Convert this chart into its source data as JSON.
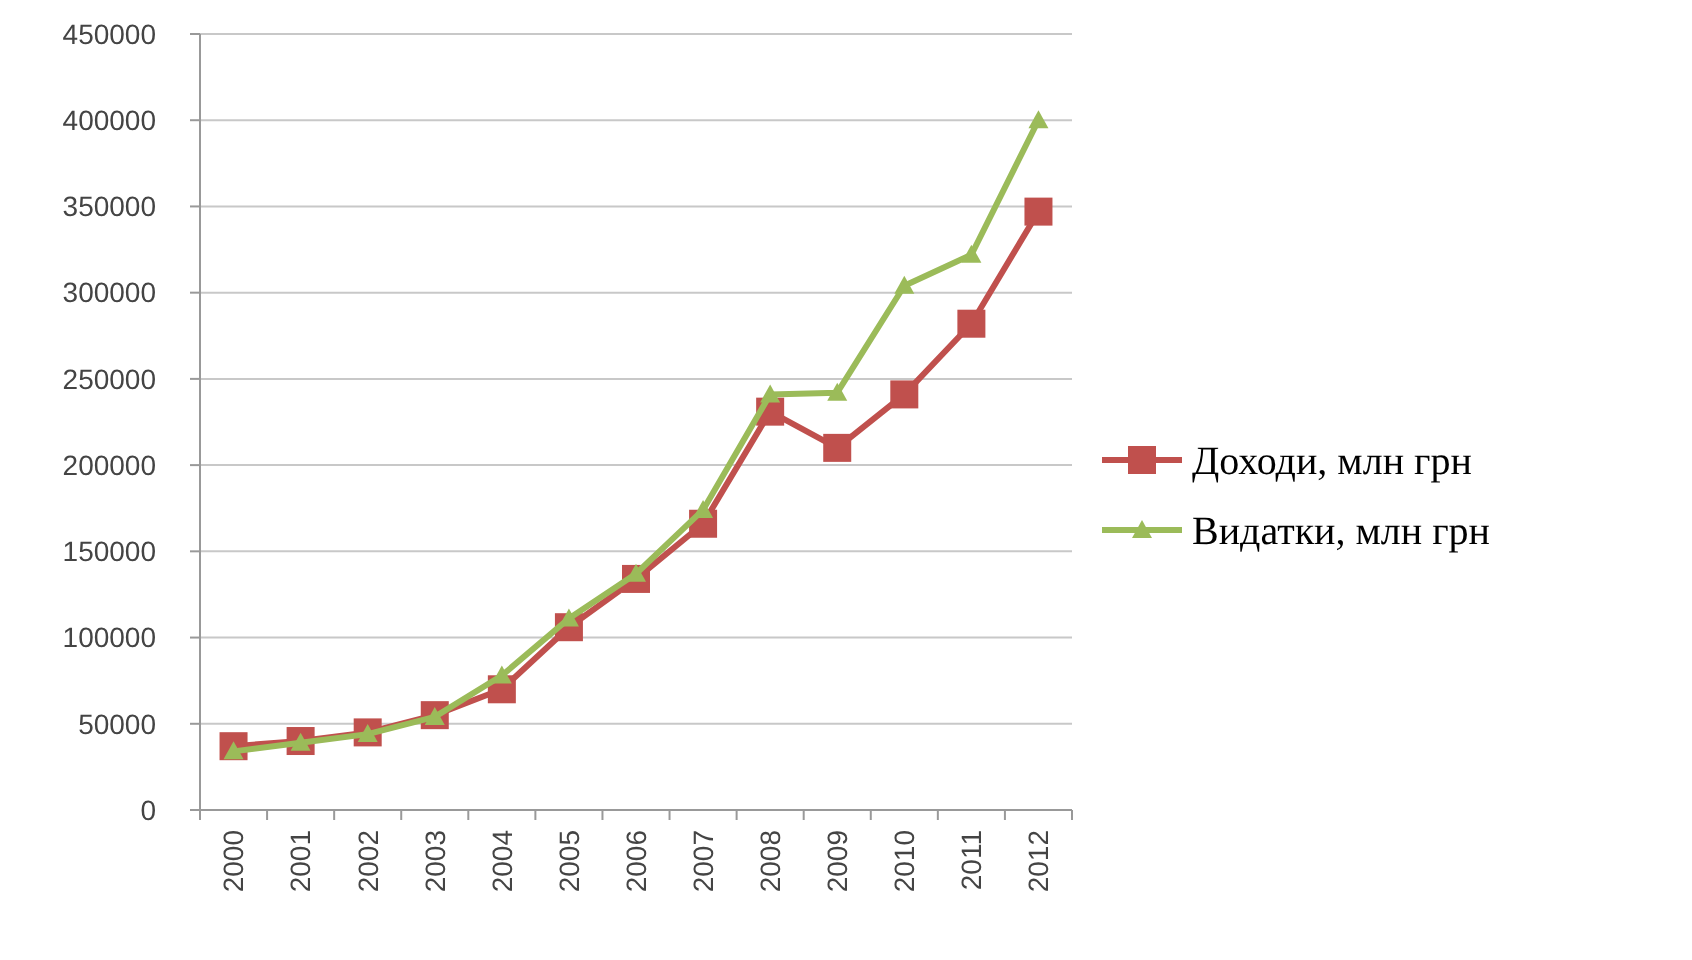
{
  "chart_data": {
    "type": "line",
    "categories": [
      "2000",
      "2001",
      "2002",
      "2003",
      "2004",
      "2005",
      "2006",
      "2007",
      "2008",
      "2009",
      "2010",
      "2011",
      "2012"
    ],
    "series": [
      {
        "name": "Доходи, млн грн",
        "color": "#c0504d",
        "marker": "square",
        "values": [
          37000,
          40000,
          45000,
          55000,
          70000,
          106000,
          134000,
          166000,
          231000,
          210000,
          241000,
          282000,
          347000
        ]
      },
      {
        "name": "Видатки, млн грн",
        "color": "#9bbb59",
        "marker": "triangle",
        "values": [
          34000,
          39000,
          44000,
          54000,
          78000,
          111000,
          137000,
          174000,
          241000,
          242000,
          304000,
          322000,
          400000
        ]
      }
    ],
    "ylim": [
      0,
      450000
    ],
    "yticks": [
      0,
      50000,
      100000,
      150000,
      200000,
      250000,
      300000,
      350000,
      400000,
      450000
    ],
    "grid": "y",
    "legend": "right"
  }
}
